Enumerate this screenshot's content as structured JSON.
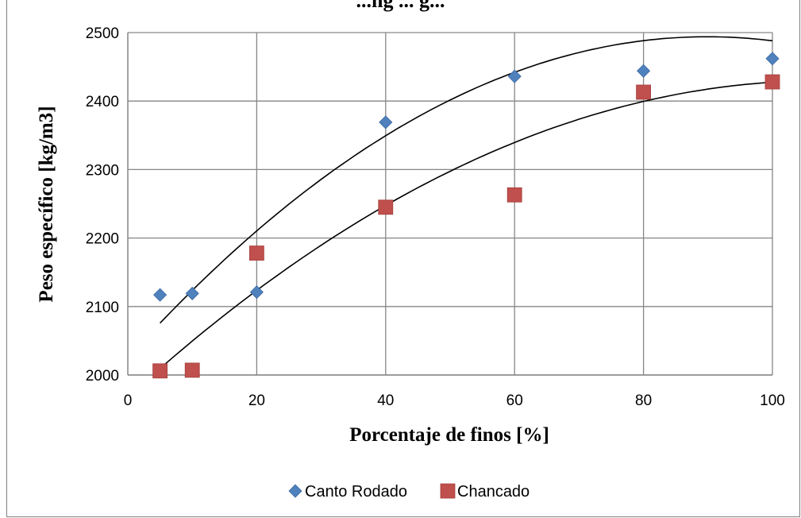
{
  "chart_data": {
    "type": "scatter",
    "title": "...ng ... g...",
    "xlabel": "Porcentaje de finos [%]",
    "ylabel": "Peso específico [kg/m3]",
    "xlim": [
      0,
      100
    ],
    "ylim": [
      2000,
      2500
    ],
    "xticks": [
      0,
      20,
      40,
      60,
      80,
      100
    ],
    "yticks": [
      2000,
      2100,
      2200,
      2300,
      2400,
      2500
    ],
    "grid": true,
    "legend_position": "bottom",
    "series": [
      {
        "name": "Canto Rodado",
        "marker": "diamond",
        "color": "#4f81bd",
        "x": [
          5,
          10,
          20,
          40,
          60,
          80,
          100
        ],
        "y": [
          2117,
          2119,
          2121,
          2369,
          2436,
          2444,
          2462
        ],
        "trendline": {
          "type": "polynomial",
          "from": 5,
          "to": 100,
          "coefficients": [
            2025,
            10.43,
            -0.058
          ]
        }
      },
      {
        "name": "Chancado",
        "marker": "square",
        "color": "#c0504d",
        "x": [
          5,
          10,
          20,
          40,
          60,
          80,
          100
        ],
        "y": [
          2006,
          2007,
          2178,
          2245,
          2263,
          2413,
          2428
        ],
        "trendline": {
          "type": "polynomial",
          "from": 5,
          "to": 100,
          "coefficients": [
            1967.5,
            8.6,
            -0.04
          ]
        }
      }
    ]
  }
}
